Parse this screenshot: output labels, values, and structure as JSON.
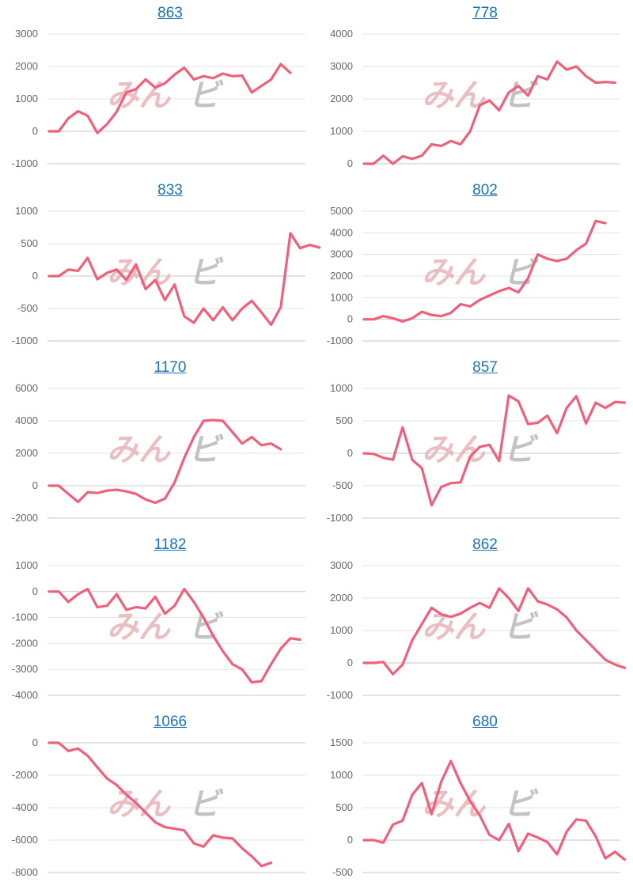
{
  "colors": {
    "line": "#f0607a",
    "grid": "#e3e3e3",
    "zero": "#c7c7c7",
    "tick": "#666666",
    "title": "#1a73b8"
  },
  "watermark": "みんビ",
  "chart_data": [
    {
      "type": "line",
      "title": "863",
      "ylim": [
        -1000,
        3000
      ],
      "ticks": [
        3000,
        2000,
        1000,
        0,
        -1000
      ],
      "y": [
        0,
        0,
        400,
        620,
        480,
        -50,
        220,
        600,
        1200,
        1300,
        1600,
        1350,
        1480,
        1750,
        1960,
        1600,
        1700,
        1640,
        1780,
        1700,
        1720,
        1200,
        1400,
        1600,
        2070,
        1800
      ]
    },
    {
      "type": "line",
      "title": "778",
      "ylim": [
        0,
        4000
      ],
      "ticks": [
        4000,
        3000,
        2000,
        1000,
        0
      ],
      "y": [
        0,
        0,
        250,
        0,
        230,
        150,
        250,
        600,
        550,
        700,
        600,
        1000,
        1800,
        1950,
        1650,
        2200,
        2400,
        2100,
        2700,
        2600,
        3150,
        2900,
        3000,
        2700,
        2500,
        2520,
        2500
      ]
    },
    {
      "type": "line",
      "title": "833",
      "ylim": [
        -1000,
        1000
      ],
      "ticks": [
        1000,
        500,
        0,
        -500,
        -1000
      ],
      "y": [
        0,
        0,
        100,
        80,
        280,
        -50,
        50,
        100,
        -60,
        180,
        -200,
        -60,
        -370,
        -130,
        -620,
        -720,
        -500,
        -680,
        -480,
        -680,
        -500,
        -380,
        -560,
        -750,
        -480,
        660,
        430,
        480,
        440
      ]
    },
    {
      "type": "line",
      "title": "802",
      "ylim": [
        -1000,
        5000
      ],
      "ticks": [
        5000,
        4000,
        3000,
        2000,
        1000,
        0,
        -1000
      ],
      "y": [
        0,
        0,
        150,
        50,
        -100,
        50,
        350,
        200,
        150,
        300,
        700,
        600,
        900,
        1100,
        1300,
        1450,
        1250,
        1900,
        3000,
        2800,
        2700,
        2800,
        3200,
        3500,
        4550,
        4450
      ]
    },
    {
      "type": "line",
      "title": "1170",
      "ylim": [
        -2000,
        6000
      ],
      "ticks": [
        6000,
        4000,
        2000,
        0,
        -2000
      ],
      "y": [
        0,
        0,
        -500,
        -1000,
        -400,
        -450,
        -300,
        -250,
        -350,
        -500,
        -850,
        -1050,
        -800,
        200,
        1700,
        3000,
        4000,
        4050,
        4000,
        3300,
        2600,
        3000,
        2500,
        2600,
        2250
      ]
    },
    {
      "type": "line",
      "title": "857",
      "ylim": [
        -1000,
        1000
      ],
      "ticks": [
        1000,
        500,
        0,
        -500,
        -1000
      ],
      "y": [
        0,
        -10,
        -70,
        -100,
        400,
        -100,
        -230,
        -800,
        -520,
        -460,
        -450,
        -50,
        100,
        130,
        -120,
        890,
        800,
        450,
        470,
        580,
        310,
        700,
        880,
        460,
        780,
        700,
        790,
        780
      ]
    },
    {
      "type": "line",
      "title": "1182",
      "ylim": [
        -4000,
        1000
      ],
      "ticks": [
        1000,
        0,
        -1000,
        -2000,
        -3000,
        -4000
      ],
      "y": [
        0,
        0,
        -400,
        -100,
        100,
        -600,
        -550,
        -100,
        -700,
        -600,
        -650,
        -200,
        -850,
        -550,
        100,
        -400,
        -1000,
        -1700,
        -2300,
        -2800,
        -3000,
        -3500,
        -3450,
        -2800,
        -2200,
        -1800,
        -1850
      ]
    },
    {
      "type": "line",
      "title": "862",
      "ylim": [
        -1000,
        3000
      ],
      "ticks": [
        3000,
        2000,
        1000,
        0,
        -1000
      ],
      "y": [
        0,
        0,
        30,
        -350,
        -50,
        700,
        1200,
        1700,
        1500,
        1420,
        1520,
        1700,
        1850,
        1700,
        2300,
        2000,
        1600,
        2300,
        1900,
        1800,
        1650,
        1400,
        1000,
        700,
        400,
        100,
        -50,
        -150
      ]
    },
    {
      "type": "line",
      "title": "1066",
      "ylim": [
        -8000,
        0
      ],
      "ticks": [
        0,
        -2000,
        -4000,
        -6000,
        -8000
      ],
      "y": [
        0,
        0,
        -500,
        -350,
        -800,
        -1500,
        -2200,
        -2600,
        -3200,
        -3700,
        -4300,
        -4900,
        -5200,
        -5300,
        -5400,
        -6200,
        -6400,
        -5700,
        -5850,
        -5900,
        -6500,
        -7000,
        -7600,
        -7400
      ]
    },
    {
      "type": "line",
      "title": "680",
      "ylim": [
        -500,
        1500
      ],
      "ticks": [
        1500,
        1000,
        500,
        0,
        -500
      ],
      "y": [
        0,
        0,
        -40,
        240,
        300,
        700,
        880,
        400,
        900,
        1220,
        880,
        600,
        380,
        80,
        0,
        250,
        -170,
        100,
        40,
        -30,
        -220,
        130,
        320,
        300,
        60,
        -280,
        -180,
        -300
      ]
    }
  ]
}
